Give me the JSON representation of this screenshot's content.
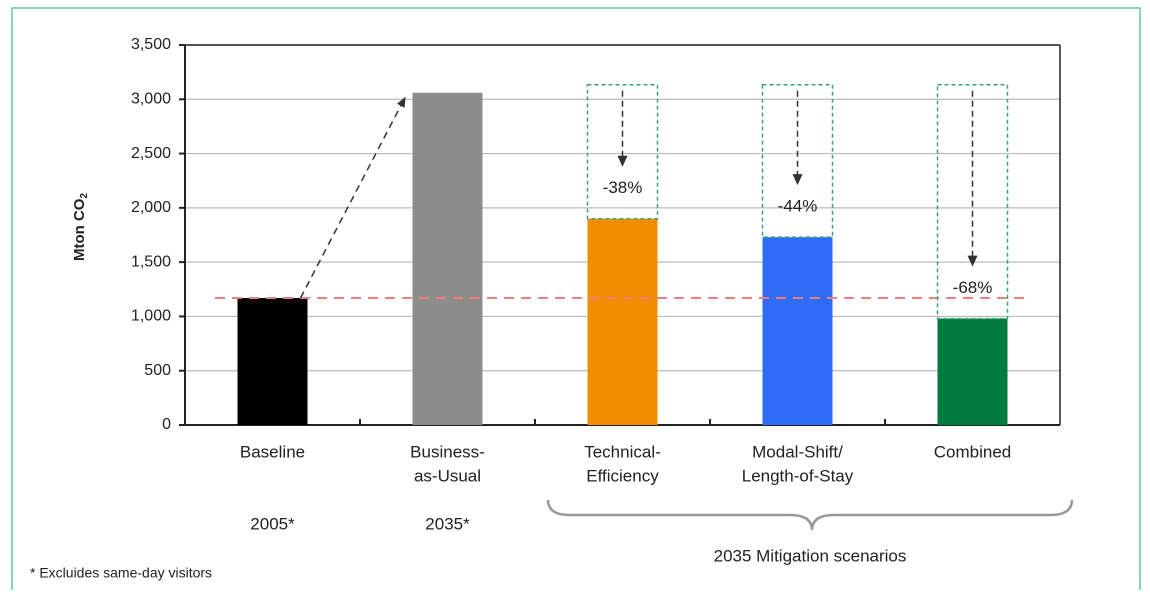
{
  "chart_data": {
    "type": "bar",
    "ylabel": "Mton CO",
    "ylabel_sub": "2",
    "categories": [
      [
        "Baseline"
      ],
      [
        "Business-",
        "as-Usual"
      ],
      [
        "Technical-",
        "Efficiency"
      ],
      [
        "Modal-Shift/",
        "Length-of-Stay"
      ],
      [
        "Combined"
      ]
    ],
    "values": [
      1170,
      3060,
      1900,
      1730,
      980
    ],
    "colors": [
      "#000000",
      "#8c8c8c",
      "#f28c00",
      "#2f6bf5",
      "#007a3d"
    ],
    "changes": [
      null,
      null,
      -38,
      -44,
      -68
    ],
    "change_labels": [
      null,
      null,
      "-38%",
      "-44%",
      "-68%"
    ],
    "years": [
      "2005*",
      "2035*"
    ],
    "bracket_label": "2035 Mitigation scenarios",
    "footnote": "* Excluides same-day visitors",
    "ylim": [
      0,
      3500
    ],
    "yticks": [
      0,
      500,
      {
        "value": 1000,
        "label": "1,000"
      },
      {
        "value": 1500,
        "label": "1,500"
      },
      {
        "value": 2000,
        "label": "2,000"
      },
      {
        "value": 2500,
        "label": "2,500"
      },
      {
        "value": 3000,
        "label": "3,000"
      },
      {
        "value": 3500,
        "label": "3,500"
      }
    ],
    "grid": true
  }
}
